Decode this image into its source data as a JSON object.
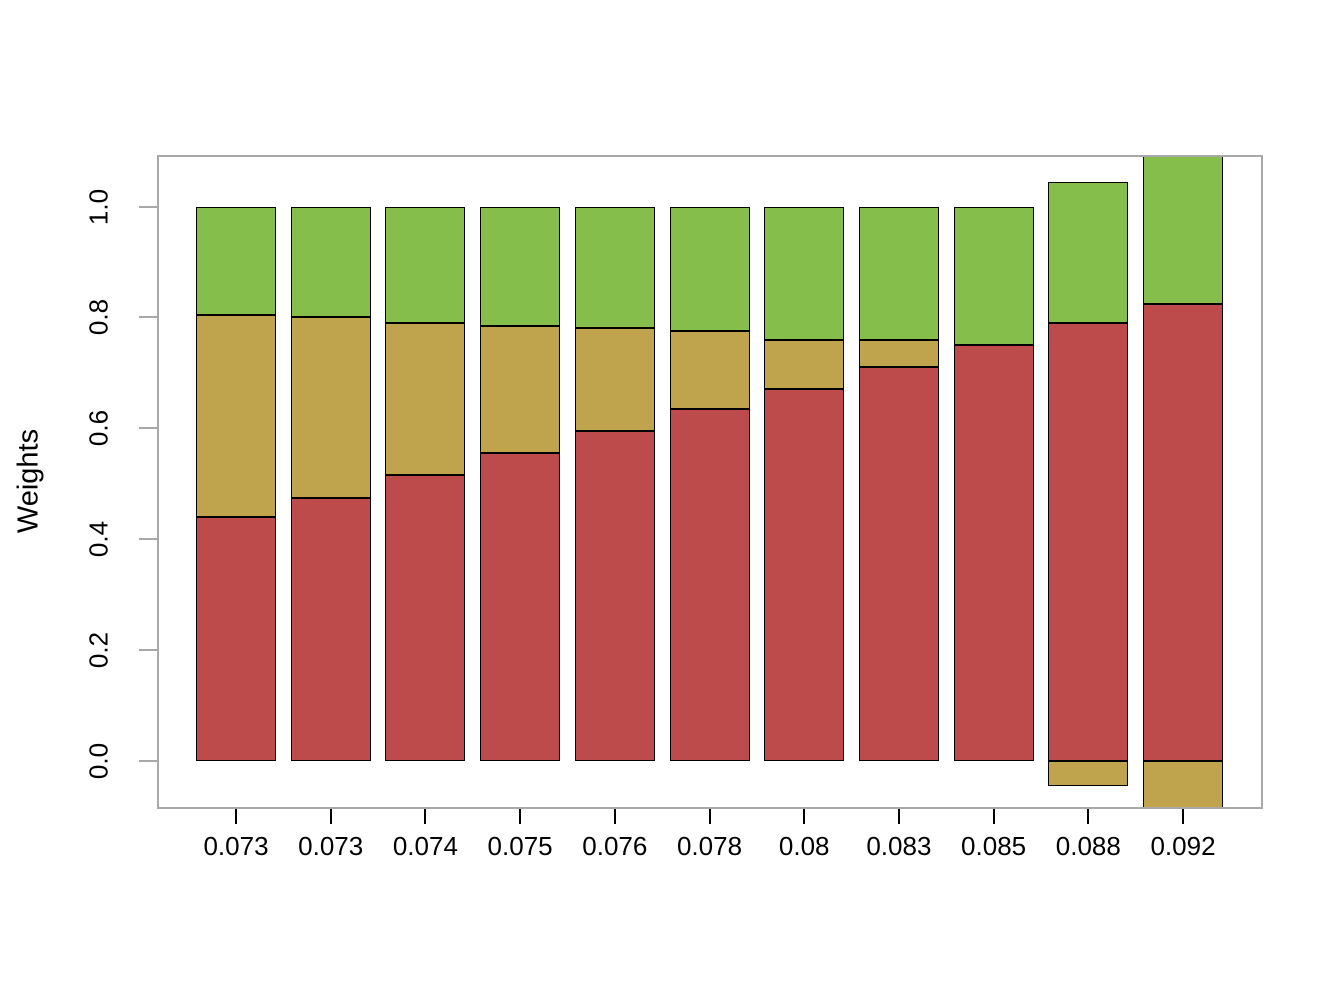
{
  "figure": {
    "ylab": "Weights",
    "background_color": "#ffffff",
    "box_color": "#a8a8a8",
    "bar_border_color": "#000000"
  },
  "axes": {
    "y_ticks": [
      {
        "value": 0.0,
        "label": "0.0"
      },
      {
        "value": 0.2,
        "label": "0.2"
      },
      {
        "value": 0.4,
        "label": "0.4"
      },
      {
        "value": 0.6,
        "label": "0.6"
      },
      {
        "value": 0.8,
        "label": "0.8"
      },
      {
        "value": 1.0,
        "label": "1.0"
      }
    ]
  },
  "chart_data": {
    "type": "bar",
    "stacked": true,
    "title": "",
    "xlabel": "",
    "ylabel": "Weights",
    "ylim": [
      -0.088,
      1.092
    ],
    "grid": false,
    "legend": false,
    "categories": [
      "0.073",
      "0.073",
      "0.074",
      "0.075",
      "0.076",
      "0.078",
      "0.08",
      "0.083",
      "0.085",
      "0.088",
      "0.092"
    ],
    "series": [
      {
        "name": "red",
        "color": "#be4b4b",
        "values": [
          0.44,
          0.475,
          0.515,
          0.555,
          0.595,
          0.635,
          0.67,
          0.71,
          0.75,
          0.79,
          0.825
        ]
      },
      {
        "name": "gold",
        "color": "#bfa44d",
        "values": [
          0.365,
          0.325,
          0.275,
          0.23,
          0.185,
          0.14,
          0.09,
          0.05,
          0.0,
          -0.045,
          -0.095
        ]
      },
      {
        "name": "green",
        "color": "#86be4c",
        "values": [
          0.195,
          0.2,
          0.21,
          0.215,
          0.22,
          0.225,
          0.24,
          0.24,
          0.25,
          0.255,
          0.27
        ]
      }
    ],
    "note": "Positive values stack upward from 0; negative values hang below 0. Last bar is clipped by the plot box at top and bottom."
  }
}
